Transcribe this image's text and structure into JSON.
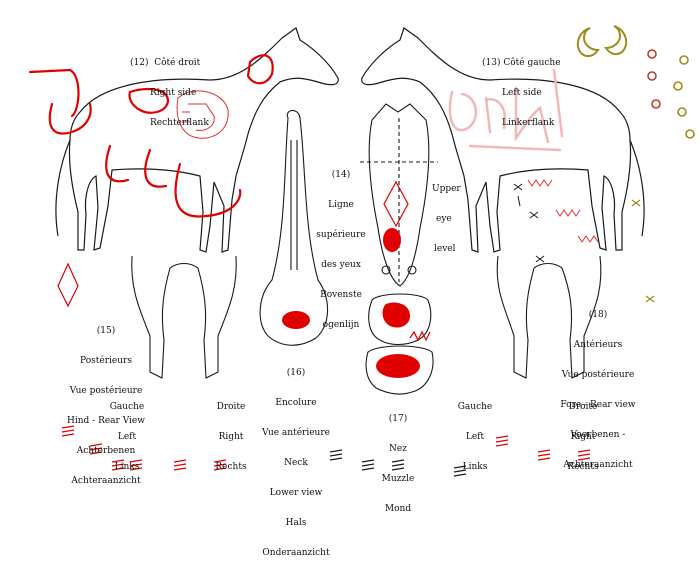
{
  "labels": {
    "right_side": [
      "(12)  Côté droit",
      "Right side",
      "Rechterflank"
    ],
    "left_side": [
      "(13) Côté gauche",
      "Left side",
      "Linkerflank"
    ],
    "eye_level": [
      "(14)",
      "Ligne",
      "supérieure",
      "des yeux",
      "Bovenste",
      "ogenlijn"
    ],
    "upper_eye": [
      "Upper",
      "eye",
      "level"
    ],
    "hind_rear": [
      "(15)",
      "Postérieurs",
      "Vue postérieure",
      "Hind - Rear View",
      "Achterbenen",
      "Achteraanzicht"
    ],
    "hind_left": [
      "Gauche",
      "Left",
      "Links"
    ],
    "hind_right": [
      "Droite",
      "Right",
      "Rechts"
    ],
    "neck": [
      "(16)",
      "Encolure",
      "Vue antérieure",
      "Neck",
      "Lower view",
      "Hals",
      "Onderaanzicht"
    ],
    "muzzle": [
      "(17)",
      "Nez",
      "Muzzle",
      "Mond"
    ],
    "fore_rear": [
      "(18)",
      "Antérieurs",
      "Vue postérieure",
      "Fore - Rear view",
      "Voorbenen -",
      "Achteraanzicht"
    ],
    "fore_left": [
      "Gauche",
      "Left",
      "Links"
    ],
    "fore_right": [
      "Droite",
      "Right",
      "Rechts"
    ]
  },
  "colors": {
    "line_art": "#1a1a1a",
    "red_mark": "#e00000",
    "pink_scribble": "#f2b8b8",
    "olive_decor": "#a08a1a",
    "circle_red": "#c0392b"
  }
}
